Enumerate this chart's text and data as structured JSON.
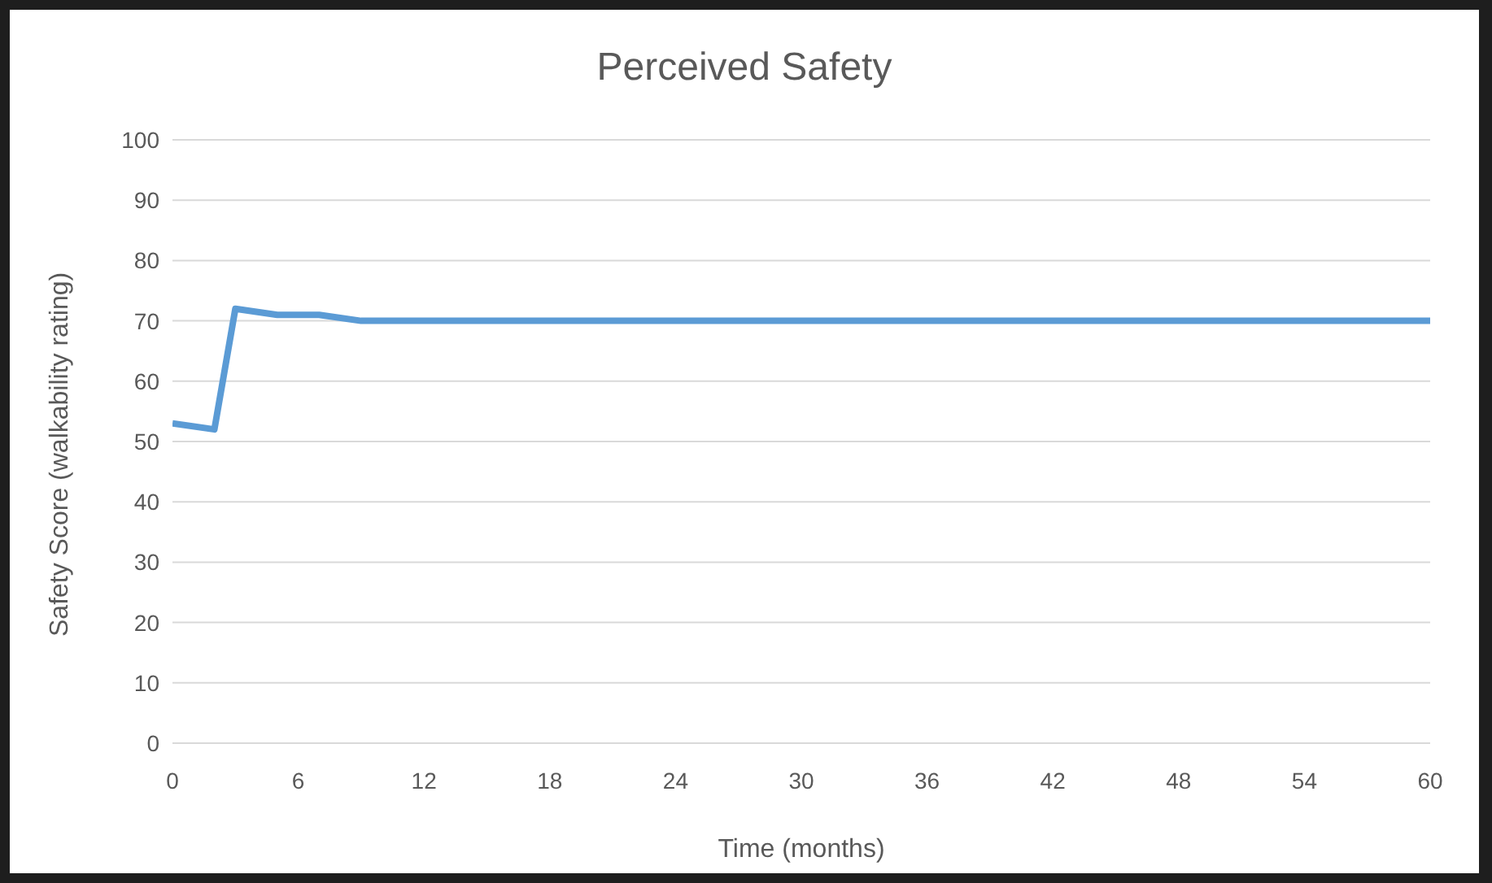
{
  "chart_data": {
    "type": "line",
    "title": "Perceived Safety",
    "xlabel": "Time (months)",
    "ylabel": "Safety Score (walkability rating)",
    "x": [
      0,
      2,
      3,
      5,
      7,
      9,
      60
    ],
    "series": [
      {
        "color": "#5b9bd5",
        "values": [
          53,
          52,
          72,
          71,
          71,
          70,
          70
        ]
      }
    ],
    "xlim": [
      0,
      60
    ],
    "xticks": [
      0,
      6,
      12,
      18,
      24,
      30,
      36,
      42,
      48,
      54,
      60
    ],
    "ylim": [
      0,
      100
    ],
    "yticks": [
      0,
      10,
      20,
      30,
      40,
      50,
      60,
      70,
      80,
      90,
      100
    ],
    "grid": "y",
    "legend": false,
    "marker": "none",
    "line_style": "solid"
  }
}
